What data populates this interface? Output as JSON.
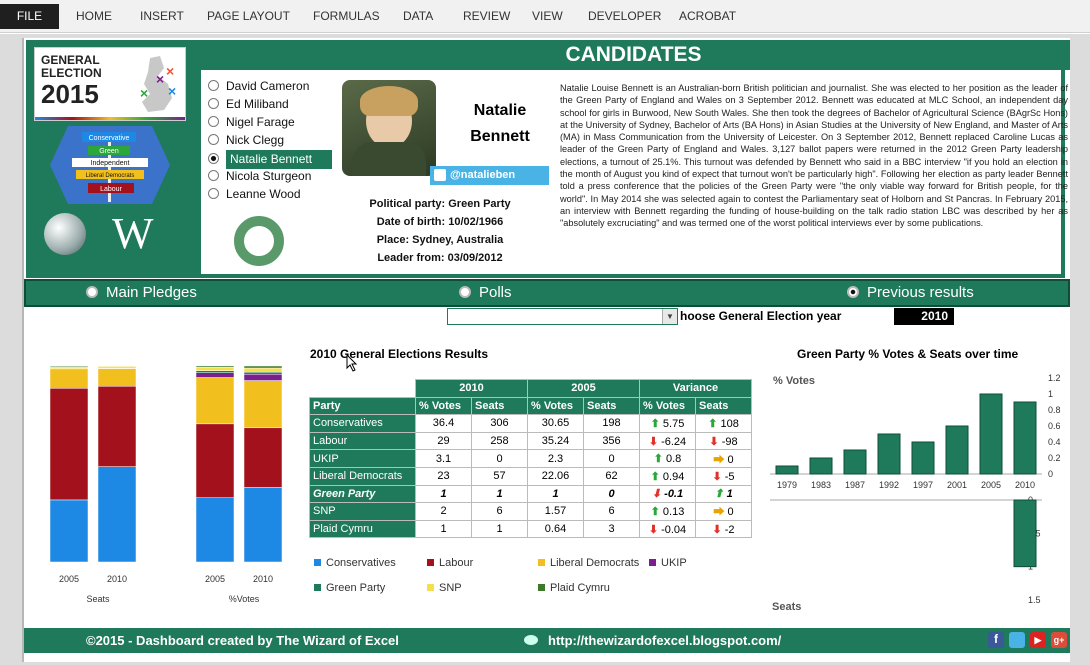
{
  "ribbon": {
    "tabs": [
      "FILE",
      "HOME",
      "INSERT",
      "PAGE LAYOUT",
      "FORMULAS",
      "DATA",
      "REVIEW",
      "VIEW",
      "DEVELOPER",
      "ACROBAT"
    ]
  },
  "logo": {
    "line1": "GENERAL",
    "line2": "ELECTION",
    "line3": "2015"
  },
  "signs": [
    "Conservative",
    "Green",
    "Independent",
    "Liberal Democrats",
    "Labour"
  ],
  "title": "CANDIDATES",
  "candidates": [
    "David Cameron",
    "Ed Miliband",
    "Nigel Farage",
    "Nick Clegg",
    "Natalie Bennett",
    "Nicola Sturgeon",
    "Leanne Wood"
  ],
  "selected_index": 4,
  "profile": {
    "first": "Natalie",
    "last": "Bennett",
    "twitter": "@natalieben",
    "party": "Political party: Green Party",
    "dob": "Date of birth: 10/02/1966",
    "place": "Place: Sydney, Australia",
    "leader": "Leader from: 03/09/2012",
    "bio": "Natalie Louise Bennett is an Australian-born British politician and journalist. She was elected to her position as the leader of the Green Party of England and Wales on 3 September 2012. Bennett was educated at MLC School, an independent day school for girls in Burwood, New South Wales. She then took the degrees of Bachelor of Agricultural Science (BAgrSc Hons) at the University of Sydney, Bachelor of Arts (BA Hons) in Asian Studies at the University of New England, and Master of Arts (MA) in Mass Communication from the University of Leicester. On 3 September 2012, Bennett replaced Caroline Lucas as leader of the Green Party of England and Wales. 3,127 ballot papers were returned in the 2012 Green Party leadership elections, a turnout of 25.1%. This turnout was defended by Bennett who said in a BBC interview \"if you hold an election in the month of August you kind of expect that turnout won't be particularly high\". Following her election as party leader Bennett told a press conference that the policies of the Green Party were \"the only viable way forward for British people, for the world\". In May 2014 she was selected again to contest the Parliamentary seat of Holborn and St Pancras. In February 2015, an interview with Bennett regarding the funding of house-building on the talk radio station LBC was described by her as \"absolutely excruciating\" and was termed one of the worst political interviews ever by some publications."
  },
  "view_tabs": [
    "Main Pledges",
    "Polls",
    "Previous results"
  ],
  "view_selected": 2,
  "year_label": "hoose General Election year",
  "year_value": "2010",
  "results": {
    "title": "2010 General Elections Results",
    "groups": [
      "2010",
      "2005",
      "Variance"
    ],
    "columns": [
      "Party",
      "% Votes",
      "Seats",
      "% Votes",
      "Seats",
      "% Votes",
      "Seats"
    ],
    "rows": [
      {
        "party": "Conservatives",
        "v10": "36.4",
        "s10": "306",
        "v05": "30.65",
        "s05": "198",
        "dv": "5.75",
        "dvd": "up",
        "ds": "108",
        "dsd": "up"
      },
      {
        "party": "Labour",
        "v10": "29",
        "s10": "258",
        "v05": "35.24",
        "s05": "356",
        "dv": "-6.24",
        "dvd": "down",
        "ds": "-98",
        "dsd": "down"
      },
      {
        "party": "UKIP",
        "v10": "3.1",
        "s10": "0",
        "v05": "2.3",
        "s05": "0",
        "dv": "0.8",
        "dvd": "up",
        "ds": "0",
        "dsd": "side"
      },
      {
        "party": "Liberal Democrats",
        "v10": "23",
        "s10": "57",
        "v05": "22.06",
        "s05": "62",
        "dv": "0.94",
        "dvd": "up",
        "ds": "-5",
        "dsd": "down"
      },
      {
        "party": "Green Party",
        "v10": "1",
        "s10": "1",
        "v05": "1",
        "s05": "0",
        "dv": "-0.1",
        "dvd": "down",
        "ds": "1",
        "dsd": "up"
      },
      {
        "party": "SNP",
        "v10": "2",
        "s10": "6",
        "v05": "1.57",
        "s05": "6",
        "dv": "0.13",
        "dvd": "up",
        "ds": "0",
        "dsd": "side"
      },
      {
        "party": "Plaid Cymru",
        "v10": "1",
        "s10": "1",
        "v05": "0.64",
        "s05": "3",
        "dv": "-0.04",
        "dvd": "down",
        "ds": "-2",
        "dsd": "down"
      }
    ]
  },
  "legend": [
    {
      "name": "Conservatives",
      "color": "#1e88e5"
    },
    {
      "name": "Labour",
      "color": "#a3121c"
    },
    {
      "name": "Liberal Democrats",
      "color": "#f2c01e"
    },
    {
      "name": "UKIP",
      "color": "#7a1f8c"
    },
    {
      "name": "Green Party",
      "color": "#1f7a5c"
    },
    {
      "name": "SNP",
      "color": "#f5e04a"
    },
    {
      "name": "Plaid Cymru",
      "color": "#3c7a2a"
    }
  ],
  "chart_data": [
    {
      "type": "bar",
      "stacked": true,
      "percent": true,
      "categories": [
        "2005",
        "2010"
      ],
      "xlabel": "Seats",
      "series": [
        {
          "name": "Conservatives",
          "values": [
            198,
            306
          ]
        },
        {
          "name": "Labour",
          "values": [
            356,
            258
          ]
        },
        {
          "name": "Liberal Democrats",
          "values": [
            62,
            57
          ]
        },
        {
          "name": "UKIP",
          "values": [
            0,
            0
          ]
        },
        {
          "name": "Green Party",
          "values": [
            0,
            1
          ]
        },
        {
          "name": "SNP",
          "values": [
            6,
            6
          ]
        },
        {
          "name": "Plaid Cymru",
          "values": [
            3,
            1
          ]
        }
      ]
    },
    {
      "type": "bar",
      "stacked": true,
      "percent": true,
      "categories": [
        "2005",
        "2010"
      ],
      "xlabel": "%Votes",
      "series": [
        {
          "name": "Conservatives",
          "values": [
            30.65,
            36.4
          ]
        },
        {
          "name": "Labour",
          "values": [
            35.24,
            29
          ]
        },
        {
          "name": "Liberal Democrats",
          "values": [
            22.06,
            23
          ]
        },
        {
          "name": "UKIP",
          "values": [
            2.3,
            3.1
          ]
        },
        {
          "name": "Green Party",
          "values": [
            1,
            1
          ]
        },
        {
          "name": "SNP",
          "values": [
            1.57,
            2
          ]
        },
        {
          "name": "Plaid Cymru",
          "values": [
            0.64,
            1
          ]
        }
      ]
    },
    {
      "type": "bar",
      "title": "Green Party % Votes & Seats over time",
      "categories": [
        "1979",
        "1983",
        "1987",
        "1992",
        "1997",
        "2001",
        "2005",
        "2010"
      ],
      "votes_label": "% Votes",
      "seats_label": "Seats",
      "votes": [
        0.1,
        0.2,
        0.3,
        0.5,
        0.4,
        0.6,
        1.0,
        0.9
      ],
      "seats": [
        0,
        0,
        0,
        0,
        0,
        0,
        0,
        1
      ],
      "votes_ylim": [
        0,
        1.2
      ],
      "votes_ticks": [
        "1.2",
        "1",
        "0.8",
        "0.6",
        "0.4",
        "0.2",
        "0"
      ],
      "seats_ylim": [
        0,
        1.5
      ],
      "seats_ticks": [
        "0",
        "0.5",
        "1",
        "1.5"
      ]
    }
  ],
  "footer": {
    "credit": "©2015 - Dashboard created by The Wizard of Excel",
    "url": "http://thewizardofexcel.blogspot.com/"
  }
}
